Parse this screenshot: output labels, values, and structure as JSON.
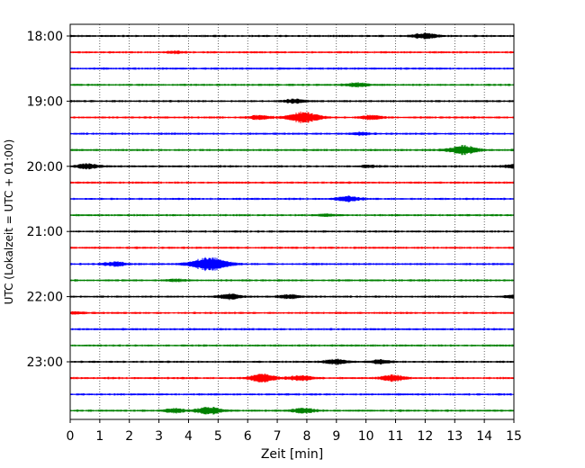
{
  "chart_data": {
    "type": "line",
    "title": "",
    "xlabel": "Zeit  [min]",
    "ylabel": "UTC (Lokalzeit = UTC + 01:00)",
    "xlim": [
      0,
      15
    ],
    "x_ticks": [
      "0",
      "1",
      "2",
      "3",
      "4",
      "5",
      "6",
      "7",
      "8",
      "9",
      "10",
      "11",
      "12",
      "13",
      "14",
      "15"
    ],
    "y_ticks": [
      "18:00",
      "19:00",
      "20:00",
      "21:00",
      "22:00",
      "23:00"
    ],
    "grid": "vertical dotted",
    "trace_colors": [
      "#000000",
      "#ff0000",
      "#0000ff",
      "#008000"
    ],
    "series": [
      {
        "start": "18:00",
        "bursts": [
          [
            12.0,
            0.3
          ]
        ]
      },
      {
        "start": "18:15",
        "bursts": [
          [
            3.6,
            0.1
          ]
        ]
      },
      {
        "start": "18:30",
        "bursts": []
      },
      {
        "start": "18:45",
        "bursts": [
          [
            9.7,
            0.2
          ]
        ]
      },
      {
        "start": "19:00",
        "bursts": [
          [
            7.6,
            0.2
          ]
        ]
      },
      {
        "start": "19:15",
        "bursts": [
          [
            6.4,
            0.2
          ],
          [
            7.9,
            0.55
          ],
          [
            10.2,
            0.2
          ]
        ]
      },
      {
        "start": "19:30",
        "bursts": [
          [
            9.8,
            0.15
          ]
        ]
      },
      {
        "start": "19:45",
        "bursts": [
          [
            13.3,
            0.45
          ]
        ]
      },
      {
        "start": "20:00",
        "bursts": [
          [
            0.6,
            0.25
          ],
          [
            10.1,
            0.1
          ],
          [
            14.9,
            0.15
          ]
        ]
      },
      {
        "start": "20:15",
        "bursts": []
      },
      {
        "start": "20:30",
        "bursts": [
          [
            9.4,
            0.25
          ]
        ]
      },
      {
        "start": "20:45",
        "bursts": [
          [
            8.7,
            0.1
          ]
        ]
      },
      {
        "start": "21:00",
        "bursts": []
      },
      {
        "start": "21:15",
        "bursts": []
      },
      {
        "start": "21:30",
        "bursts": [
          [
            4.7,
            0.7
          ],
          [
            1.5,
            0.2
          ]
        ]
      },
      {
        "start": "21:45",
        "bursts": [
          [
            3.6,
            0.1
          ]
        ]
      },
      {
        "start": "22:00",
        "bursts": [
          [
            5.4,
            0.25
          ],
          [
            7.4,
            0.2
          ],
          [
            15.0,
            0.15
          ]
        ]
      },
      {
        "start": "22:15",
        "bursts": [
          [
            0.2,
            0.1
          ]
        ]
      },
      {
        "start": "22:30",
        "bursts": []
      },
      {
        "start": "22:45",
        "bursts": []
      },
      {
        "start": "23:00",
        "bursts": [
          [
            9.0,
            0.25
          ],
          [
            10.5,
            0.2
          ]
        ]
      },
      {
        "start": "23:15",
        "bursts": [
          [
            6.5,
            0.4
          ],
          [
            7.8,
            0.25
          ],
          [
            10.9,
            0.3
          ]
        ]
      },
      {
        "start": "23:30",
        "bursts": []
      },
      {
        "start": "23:45",
        "bursts": [
          [
            4.7,
            0.35
          ],
          [
            3.5,
            0.2
          ],
          [
            7.9,
            0.25
          ]
        ]
      }
    ]
  }
}
